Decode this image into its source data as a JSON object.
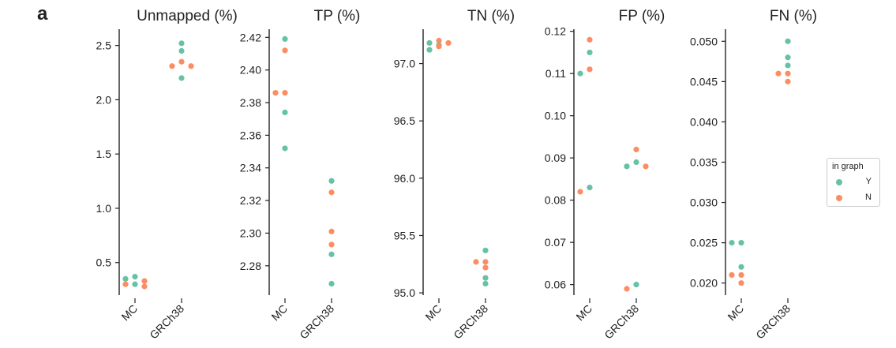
{
  "panel_letter": "a",
  "colors": {
    "Y": "#66c2a5",
    "N": "#fc8d62"
  },
  "legend": {
    "title": "in graph",
    "entries": [
      {
        "label": "Y",
        "key": "Y"
      },
      {
        "label": "N",
        "key": "N"
      }
    ]
  },
  "chart_data": [
    {
      "type": "scatter",
      "title": "Unmapped (%)",
      "categories": [
        "MC",
        "GRCh38"
      ],
      "ylim": [
        0.2,
        2.65
      ],
      "yticks": [
        0.5,
        1.0,
        1.5,
        2.0,
        2.5
      ],
      "tick_labels": [
        "0.5",
        "1.0",
        "1.5",
        "2.0",
        "2.5"
      ],
      "series": [
        {
          "name": "Y",
          "points": [
            {
              "x": "MC",
              "y": 0.35
            },
            {
              "x": "MC",
              "y": 0.3
            },
            {
              "x": "MC",
              "y": 0.37
            },
            {
              "x": "GRCh38",
              "y": 2.52
            },
            {
              "x": "GRCh38",
              "y": 2.45
            },
            {
              "x": "GRCh38",
              "y": 2.2
            }
          ]
        },
        {
          "name": "N",
          "points": [
            {
              "x": "MC",
              "y": 0.33
            },
            {
              "x": "MC",
              "y": 0.3
            },
            {
              "x": "MC",
              "y": 0.28
            },
            {
              "x": "GRCh38",
              "y": 2.35
            },
            {
              "x": "GRCh38",
              "y": 2.31
            },
            {
              "x": "GRCh38",
              "y": 2.31
            }
          ]
        }
      ]
    },
    {
      "type": "scatter",
      "title": "TP (%)",
      "categories": [
        "MC",
        "GRCh38"
      ],
      "ylim": [
        2.262,
        2.425
      ],
      "yticks": [
        2.28,
        2.3,
        2.32,
        2.34,
        2.36,
        2.38,
        2.4,
        2.42
      ],
      "tick_labels": [
        "2.28",
        "2.30",
        "2.32",
        "2.34",
        "2.36",
        "2.38",
        "2.40",
        "2.42"
      ],
      "series": [
        {
          "name": "Y",
          "points": [
            {
              "x": "MC",
              "y": 2.419
            },
            {
              "x": "MC",
              "y": 2.374
            },
            {
              "x": "MC",
              "y": 2.352
            },
            {
              "x": "GRCh38",
              "y": 2.332
            },
            {
              "x": "GRCh38",
              "y": 2.287
            },
            {
              "x": "GRCh38",
              "y": 2.269
            }
          ]
        },
        {
          "name": "N",
          "points": [
            {
              "x": "MC",
              "y": 2.412
            },
            {
              "x": "MC",
              "y": 2.386
            },
            {
              "x": "MC",
              "y": 2.386
            },
            {
              "x": "GRCh38",
              "y": 2.325
            },
            {
              "x": "GRCh38",
              "y": 2.301
            },
            {
              "x": "GRCh38",
              "y": 2.293
            }
          ]
        }
      ]
    },
    {
      "type": "scatter",
      "title": "TN (%)",
      "categories": [
        "MC",
        "GRCh38"
      ],
      "ylim": [
        94.98,
        97.3
      ],
      "yticks": [
        95.0,
        95.5,
        96.0,
        96.5,
        97.0
      ],
      "tick_labels": [
        "95.0",
        "95.5",
        "96.0",
        "96.5",
        "97.0"
      ],
      "series": [
        {
          "name": "Y",
          "points": [
            {
              "x": "MC",
              "y": 97.18
            },
            {
              "x": "MC",
              "y": 97.16
            },
            {
              "x": "MC",
              "y": 97.12
            },
            {
              "x": "GRCh38",
              "y": 95.37
            },
            {
              "x": "GRCh38",
              "y": 95.13
            },
            {
              "x": "GRCh38",
              "y": 95.08
            }
          ]
        },
        {
          "name": "N",
          "points": [
            {
              "x": "MC",
              "y": 97.2
            },
            {
              "x": "MC",
              "y": 97.18
            },
            {
              "x": "MC",
              "y": 97.15
            },
            {
              "x": "GRCh38",
              "y": 95.27
            },
            {
              "x": "GRCh38",
              "y": 95.27
            },
            {
              "x": "GRCh38",
              "y": 95.22
            }
          ]
        }
      ]
    },
    {
      "type": "scatter",
      "title": "FP (%)",
      "categories": [
        "MC",
        "GRCh38"
      ],
      "ylim": [
        0.0575,
        0.1205
      ],
      "yticks": [
        0.06,
        0.07,
        0.08,
        0.09,
        0.1,
        0.11,
        0.12
      ],
      "tick_labels": [
        "0.06",
        "0.07",
        "0.08",
        "0.09",
        "0.10",
        "0.11",
        "0.12"
      ],
      "series": [
        {
          "name": "Y",
          "points": [
            {
              "x": "MC",
              "y": 0.115
            },
            {
              "x": "MC",
              "y": 0.11
            },
            {
              "x": "MC",
              "y": 0.083
            },
            {
              "x": "GRCh38",
              "y": 0.089
            },
            {
              "x": "GRCh38",
              "y": 0.088
            },
            {
              "x": "GRCh38",
              "y": 0.06
            }
          ]
        },
        {
          "name": "N",
          "points": [
            {
              "x": "MC",
              "y": 0.118
            },
            {
              "x": "MC",
              "y": 0.111
            },
            {
              "x": "MC",
              "y": 0.082
            },
            {
              "x": "GRCh38",
              "y": 0.092
            },
            {
              "x": "GRCh38",
              "y": 0.088
            },
            {
              "x": "GRCh38",
              "y": 0.059
            }
          ]
        }
      ]
    },
    {
      "type": "scatter",
      "title": "FN (%)",
      "categories": [
        "MC",
        "GRCh38"
      ],
      "ylim": [
        0.0185,
        0.0515
      ],
      "yticks": [
        0.02,
        0.025,
        0.03,
        0.035,
        0.04,
        0.045,
        0.05
      ],
      "tick_labels": [
        "0.020",
        "0.025",
        "0.030",
        "0.035",
        "0.040",
        "0.045",
        "0.050"
      ],
      "series": [
        {
          "name": "Y",
          "points": [
            {
              "x": "MC",
              "y": 0.025
            },
            {
              "x": "MC",
              "y": 0.025
            },
            {
              "x": "MC",
              "y": 0.022
            },
            {
              "x": "GRCh38",
              "y": 0.05
            },
            {
              "x": "GRCh38",
              "y": 0.048
            },
            {
              "x": "GRCh38",
              "y": 0.047
            }
          ]
        },
        {
          "name": "N",
          "points": [
            {
              "x": "MC",
              "y": 0.021
            },
            {
              "x": "MC",
              "y": 0.021
            },
            {
              "x": "MC",
              "y": 0.02
            },
            {
              "x": "GRCh38",
              "y": 0.046
            },
            {
              "x": "GRCh38",
              "y": 0.046
            },
            {
              "x": "GRCh38",
              "y": 0.045
            }
          ]
        }
      ]
    }
  ]
}
